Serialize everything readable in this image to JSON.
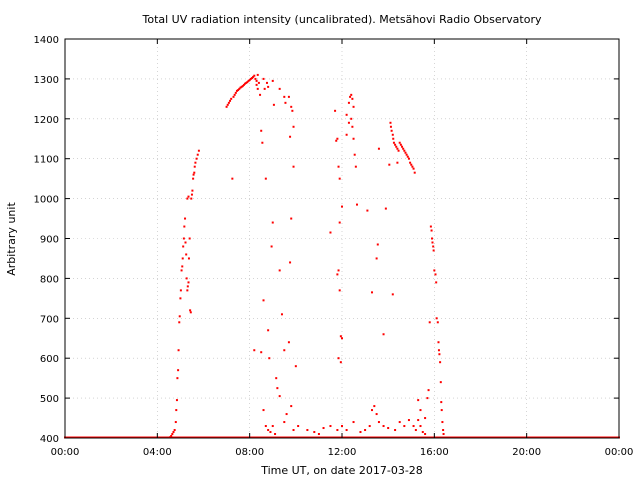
{
  "chart_data": {
    "type": "scatter",
    "title": "Total UV radiation intensity (uncalibrated). Metsähovi Radio Observatory",
    "xlabel": "Time UT, on date 2017-03-28",
    "ylabel": "Arbitrary unit",
    "xlim": [
      "00:00",
      "24:00"
    ],
    "ylim": [
      400,
      1400
    ],
    "x_ticks": [
      "00:00",
      "04:00",
      "08:00",
      "12:00",
      "16:00",
      "20:00",
      "00:00"
    ],
    "y_ticks": [
      "400",
      "500",
      "600",
      "700",
      "800",
      "900",
      "1000",
      "1100",
      "1200",
      "1300",
      "1400"
    ],
    "grid": true,
    "marker_color": "#ff0000",
    "baseline": {
      "value": 400,
      "from": "00:00",
      "to": "24:00"
    },
    "x_unit": "hours UT",
    "points": [
      [
        4.55,
        402
      ],
      [
        4.6,
        405
      ],
      [
        4.65,
        410
      ],
      [
        4.7,
        415
      ],
      [
        4.75,
        420
      ],
      [
        4.8,
        440
      ],
      [
        4.82,
        470
      ],
      [
        4.85,
        495
      ],
      [
        4.87,
        550
      ],
      [
        4.9,
        570
      ],
      [
        4.92,
        620
      ],
      [
        4.95,
        690
      ],
      [
        4.97,
        705
      ],
      [
        5.0,
        750
      ],
      [
        5.02,
        770
      ],
      [
        5.05,
        820
      ],
      [
        5.08,
        830
      ],
      [
        5.1,
        850
      ],
      [
        5.12,
        880
      ],
      [
        5.15,
        900
      ],
      [
        5.17,
        930
      ],
      [
        5.2,
        950
      ],
      [
        5.22,
        890
      ],
      [
        5.25,
        860
      ],
      [
        5.27,
        800
      ],
      [
        5.3,
        770
      ],
      [
        5.32,
        780
      ],
      [
        5.35,
        790
      ],
      [
        5.37,
        850
      ],
      [
        5.4,
        900
      ],
      [
        5.42,
        720
      ],
      [
        5.45,
        715
      ],
      [
        5.47,
        1000
      ],
      [
        5.5,
        1010
      ],
      [
        5.52,
        1020
      ],
      [
        5.55,
        1050
      ],
      [
        5.57,
        1060
      ],
      [
        5.6,
        1065
      ],
      [
        5.62,
        1080
      ],
      [
        5.65,
        1090
      ],
      [
        5.7,
        1100
      ],
      [
        5.75,
        1110
      ],
      [
        5.8,
        1120
      ],
      [
        5.3,
        1000
      ],
      [
        5.35,
        1005
      ],
      [
        7.0,
        1230
      ],
      [
        7.05,
        1235
      ],
      [
        7.1,
        1240
      ],
      [
        7.15,
        1245
      ],
      [
        7.2,
        1250
      ],
      [
        7.3,
        1255
      ],
      [
        7.35,
        1260
      ],
      [
        7.4,
        1265
      ],
      [
        7.45,
        1270
      ],
      [
        7.5,
        1272
      ],
      [
        7.55,
        1275
      ],
      [
        7.6,
        1278
      ],
      [
        7.65,
        1280
      ],
      [
        7.7,
        1282
      ],
      [
        7.75,
        1285
      ],
      [
        7.8,
        1288
      ],
      [
        7.85,
        1290
      ],
      [
        7.9,
        1292
      ],
      [
        7.95,
        1295
      ],
      [
        8.0,
        1297
      ],
      [
        8.05,
        1300
      ],
      [
        8.1,
        1302
      ],
      [
        8.15,
        1305
      ],
      [
        8.2,
        1308
      ],
      [
        8.25,
        1300
      ],
      [
        8.3,
        1295
      ],
      [
        8.35,
        1310
      ],
      [
        7.25,
        1050
      ],
      [
        8.4,
        1290
      ],
      [
        8.45,
        1260
      ],
      [
        8.5,
        1170
      ],
      [
        8.55,
        1140
      ],
      [
        8.6,
        1300
      ],
      [
        8.65,
        1275
      ],
      [
        8.7,
        1050
      ],
      [
        8.75,
        1290
      ],
      [
        8.8,
        1280
      ],
      [
        8.3,
        1285
      ],
      [
        8.35,
        1275
      ],
      [
        9.0,
        1295
      ],
      [
        9.05,
        1235
      ],
      [
        9.3,
        1275
      ],
      [
        9.5,
        1255
      ],
      [
        9.55,
        1240
      ],
      [
        9.7,
        1255
      ],
      [
        9.8,
        1230
      ],
      [
        9.85,
        1220
      ],
      [
        9.9,
        1180
      ],
      [
        9.75,
        1155
      ],
      [
        9.9,
        1080
      ],
      [
        8.6,
        745
      ],
      [
        8.8,
        670
      ],
      [
        8.85,
        600
      ],
      [
        8.95,
        880
      ],
      [
        9.0,
        940
      ],
      [
        9.15,
        550
      ],
      [
        9.3,
        820
      ],
      [
        9.4,
        710
      ],
      [
        9.5,
        620
      ],
      [
        9.7,
        640
      ],
      [
        9.8,
        950
      ],
      [
        9.75,
        840
      ],
      [
        10.0,
        580
      ],
      [
        8.5,
        615
      ],
      [
        8.2,
        620
      ],
      [
        9.3,
        505
      ],
      [
        9.2,
        525
      ],
      [
        8.6,
        470
      ],
      [
        8.7,
        430
      ],
      [
        8.8,
        420
      ],
      [
        8.9,
        415
      ],
      [
        9.0,
        430
      ],
      [
        9.1,
        410
      ],
      [
        9.5,
        440
      ],
      [
        9.6,
        460
      ],
      [
        9.8,
        480
      ],
      [
        9.9,
        420
      ],
      [
        10.1,
        430
      ],
      [
        10.5,
        420
      ],
      [
        10.8,
        415
      ],
      [
        11.0,
        410
      ],
      [
        11.2,
        425
      ],
      [
        11.5,
        430
      ],
      [
        11.8,
        420
      ],
      [
        11.5,
        915
      ],
      [
        11.7,
        1220
      ],
      [
        11.75,
        1145
      ],
      [
        11.8,
        1150
      ],
      [
        11.85,
        1080
      ],
      [
        11.9,
        1050
      ],
      [
        12.0,
        980
      ],
      [
        11.9,
        940
      ],
      [
        11.8,
        810
      ],
      [
        11.85,
        820
      ],
      [
        11.9,
        770
      ],
      [
        11.95,
        655
      ],
      [
        12.0,
        650
      ],
      [
        11.85,
        600
      ],
      [
        11.95,
        590
      ],
      [
        12.2,
        1210
      ],
      [
        12.3,
        1240
      ],
      [
        12.35,
        1255
      ],
      [
        12.4,
        1260
      ],
      [
        12.45,
        1250
      ],
      [
        12.5,
        1230
      ],
      [
        12.4,
        1200
      ],
      [
        12.3,
        1190
      ],
      [
        12.45,
        1180
      ],
      [
        12.5,
        1150
      ],
      [
        12.55,
        1110
      ],
      [
        12.6,
        1080
      ],
      [
        12.65,
        985
      ],
      [
        12.2,
        1160
      ],
      [
        12.0,
        430
      ],
      [
        12.2,
        420
      ],
      [
        12.5,
        440
      ],
      [
        12.8,
        415
      ],
      [
        13.0,
        420
      ],
      [
        13.2,
        430
      ],
      [
        13.3,
        470
      ],
      [
        13.4,
        480
      ],
      [
        13.5,
        460
      ],
      [
        13.6,
        440
      ],
      [
        13.8,
        430
      ],
      [
        14.0,
        425
      ],
      [
        13.1,
        970
      ],
      [
        13.3,
        765
      ],
      [
        13.5,
        850
      ],
      [
        13.55,
        885
      ],
      [
        13.6,
        1125
      ],
      [
        13.8,
        660
      ],
      [
        13.9,
        975
      ],
      [
        14.1,
        1190
      ],
      [
        14.12,
        1180
      ],
      [
        14.15,
        1170
      ],
      [
        14.2,
        1160
      ],
      [
        14.22,
        1150
      ],
      [
        14.25,
        1140
      ],
      [
        14.3,
        1135
      ],
      [
        14.35,
        1130
      ],
      [
        14.4,
        1125
      ],
      [
        14.45,
        1120
      ],
      [
        14.5,
        1140
      ],
      [
        14.55,
        1135
      ],
      [
        14.6,
        1130
      ],
      [
        14.65,
        1125
      ],
      [
        14.7,
        1120
      ],
      [
        14.75,
        1115
      ],
      [
        14.8,
        1110
      ],
      [
        14.85,
        1105
      ],
      [
        14.9,
        1100
      ],
      [
        14.95,
        1090
      ],
      [
        15.0,
        1085
      ],
      [
        15.05,
        1080
      ],
      [
        15.1,
        1075
      ],
      [
        15.15,
        1065
      ],
      [
        14.4,
        1090
      ],
      [
        14.05,
        1085
      ],
      [
        14.2,
        760
      ],
      [
        14.3,
        420
      ],
      [
        14.5,
        440
      ],
      [
        14.7,
        430
      ],
      [
        14.9,
        445
      ],
      [
        15.1,
        430
      ],
      [
        15.2,
        420
      ],
      [
        15.3,
        445
      ],
      [
        15.4,
        430
      ],
      [
        15.5,
        415
      ],
      [
        15.6,
        410
      ],
      [
        15.3,
        495
      ],
      [
        15.4,
        470
      ],
      [
        15.6,
        450
      ],
      [
        15.7,
        500
      ],
      [
        15.75,
        520
      ],
      [
        15.8,
        690
      ],
      [
        15.85,
        930
      ],
      [
        15.88,
        920
      ],
      [
        15.9,
        900
      ],
      [
        15.92,
        890
      ],
      [
        15.95,
        880
      ],
      [
        15.97,
        870
      ],
      [
        16.0,
        820
      ],
      [
        16.05,
        810
      ],
      [
        16.08,
        790
      ],
      [
        16.1,
        700
      ],
      [
        16.15,
        690
      ],
      [
        16.18,
        640
      ],
      [
        16.2,
        620
      ],
      [
        16.22,
        610
      ],
      [
        16.25,
        590
      ],
      [
        16.28,
        540
      ],
      [
        16.3,
        490
      ],
      [
        16.32,
        470
      ],
      [
        16.35,
        440
      ],
      [
        16.38,
        420
      ],
      [
        16.4,
        410
      ]
    ]
  }
}
